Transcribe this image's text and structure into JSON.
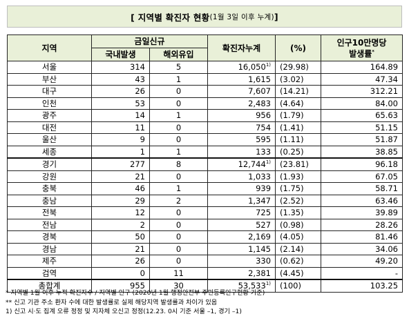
{
  "title": {
    "main": "[ 지역별 확진자 현황",
    "sub": "(1월 3일 이후 누계)",
    "close": " ]"
  },
  "headers": {
    "region": "지역",
    "daily_new": "금일신규",
    "domestic": "국내발생",
    "imported": "해외유입",
    "cumulative": "확진자누계",
    "percent": "(%)",
    "rate_line1": "인구10만명당",
    "rate_line2": "발생률",
    "rate_mark": "*"
  },
  "rows": [
    {
      "region": "서울",
      "domestic": "314",
      "imported": "5",
      "cumulative": "16,050",
      "cum_mark": "1)",
      "percent": "(29.98)",
      "rate": "164.89"
    },
    {
      "region": "부산",
      "domestic": "43",
      "imported": "1",
      "cumulative": "1,615",
      "cum_mark": "",
      "percent": "(3.02)",
      "rate": "47.34"
    },
    {
      "region": "대구",
      "domestic": "26",
      "imported": "0",
      "cumulative": "7,607",
      "cum_mark": "",
      "percent": "(14.21)",
      "rate": "312.21"
    },
    {
      "region": "인천",
      "domestic": "53",
      "imported": "0",
      "cumulative": "2,483",
      "cum_mark": "",
      "percent": "(4.64)",
      "rate": "84.00"
    },
    {
      "region": "광주",
      "domestic": "14",
      "imported": "1",
      "cumulative": "956",
      "cum_mark": "",
      "percent": "(1.79)",
      "rate": "65.63"
    },
    {
      "region": "대전",
      "domestic": "11",
      "imported": "0",
      "cumulative": "754",
      "cum_mark": "",
      "percent": "(1.41)",
      "rate": "51.15"
    },
    {
      "region": "울산",
      "domestic": "9",
      "imported": "0",
      "cumulative": "595",
      "cum_mark": "",
      "percent": "(1.11)",
      "rate": "51.87"
    },
    {
      "region": "세종",
      "domestic": "1",
      "imported": "1",
      "cumulative": "133",
      "cum_mark": "",
      "percent": "(0.25)",
      "rate": "38.85"
    },
    {
      "region": "경기",
      "domestic": "277",
      "imported": "8",
      "cumulative": "12,744",
      "cum_mark": "1)",
      "percent": "(23.81)",
      "rate": "96.18"
    },
    {
      "region": "강원",
      "domestic": "21",
      "imported": "0",
      "cumulative": "1,033",
      "cum_mark": "",
      "percent": "(1.93)",
      "rate": "67.05"
    },
    {
      "region": "충북",
      "domestic": "46",
      "imported": "1",
      "cumulative": "939",
      "cum_mark": "",
      "percent": "(1.75)",
      "rate": "58.71"
    },
    {
      "region": "충남",
      "domestic": "29",
      "imported": "2",
      "cumulative": "1,347",
      "cum_mark": "",
      "percent": "(2.52)",
      "rate": "63.46"
    },
    {
      "region": "전북",
      "domestic": "12",
      "imported": "0",
      "cumulative": "725",
      "cum_mark": "",
      "percent": "(1.35)",
      "rate": "39.89"
    },
    {
      "region": "전남",
      "domestic": "2",
      "imported": "0",
      "cumulative": "527",
      "cum_mark": "",
      "percent": "(0.98)",
      "rate": "28.26"
    },
    {
      "region": "경북",
      "domestic": "50",
      "imported": "0",
      "cumulative": "2,169",
      "cum_mark": "",
      "percent": "(4.05)",
      "rate": "81.46"
    },
    {
      "region": "경남",
      "domestic": "21",
      "imported": "0",
      "cumulative": "1,145",
      "cum_mark": "",
      "percent": "(2.14)",
      "rate": "34.06"
    },
    {
      "region": "제주",
      "domestic": "26",
      "imported": "0",
      "cumulative": "330",
      "cum_mark": "",
      "percent": "(0.62)",
      "rate": "49.20"
    },
    {
      "region": "검역",
      "domestic": "0",
      "imported": "11",
      "cumulative": "2,381",
      "cum_mark": "",
      "percent": "(4.45)",
      "rate": "-"
    }
  ],
  "total": {
    "region": "총합계",
    "domestic": "955",
    "imported": "30",
    "cumulative": "53,533",
    "cum_mark": "1)",
    "percent": "(100)",
    "rate": "103.25"
  },
  "notes": [
    "* 지역별 1월 이후 누적 확진자수 / 지역별 인구 (2020년 1월 행정안전부 주민등록인구현황 기준)",
    "** 신고 기관 주소 환자 수에 대한 발생률로 실제 해당지역 발생률과 차이가 있음",
    "1) 신고 시·도 집계 오류 정정 및 지자체 오신고 정정(12.23. 0시 기준 서울 –1, 경기 –1)"
  ]
}
